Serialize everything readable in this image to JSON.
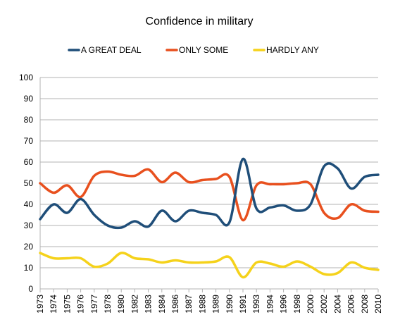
{
  "chart_data": {
    "type": "line",
    "title": "Confidence in military",
    "xlabel": "",
    "ylabel": "",
    "ylim": [
      0,
      100
    ],
    "yticks": [
      0,
      10,
      20,
      30,
      40,
      50,
      60,
      70,
      80,
      90,
      100
    ],
    "grid": true,
    "legend_position": "top",
    "smooth": true,
    "categories": [
      "1973",
      "1974",
      "1975",
      "1976",
      "1977",
      "1978",
      "1980",
      "1982",
      "1983",
      "1984",
      "1986",
      "1987",
      "1988",
      "1989",
      "1990",
      "1991",
      "1993",
      "1994",
      "1996",
      "1998",
      "2000",
      "2002",
      "2004",
      "2006",
      "2008",
      "2010"
    ],
    "series": [
      {
        "name": "A GREAT DEAL",
        "color": "#1f4e79",
        "values": [
          33,
          40,
          36,
          42.5,
          35,
          30,
          29,
          32,
          29.5,
          37,
          32,
          37,
          36,
          35,
          31.5,
          61.5,
          38,
          38.5,
          39.5,
          37,
          40,
          58,
          57,
          47.5,
          53,
          54
        ]
      },
      {
        "name": "ONLY SOME",
        "color": "#e8501e",
        "values": [
          50,
          45.5,
          49,
          43.5,
          53.5,
          55.5,
          54,
          53.5,
          56.5,
          50.5,
          55,
          50.5,
          51.5,
          52,
          53,
          32.5,
          49,
          49.5,
          49.5,
          50,
          49.5,
          36,
          33.5,
          40,
          37,
          36.5
        ]
      },
      {
        "name": "HARDLY ANY",
        "color": "#f5d21b",
        "values": [
          17,
          14.5,
          14.5,
          14.5,
          10.5,
          12,
          17,
          14.5,
          14,
          12.5,
          13.5,
          12.5,
          12.5,
          13,
          15,
          5.5,
          12.5,
          12,
          10.5,
          13,
          10.5,
          7,
          7.5,
          12.5,
          10,
          9
        ]
      }
    ]
  }
}
